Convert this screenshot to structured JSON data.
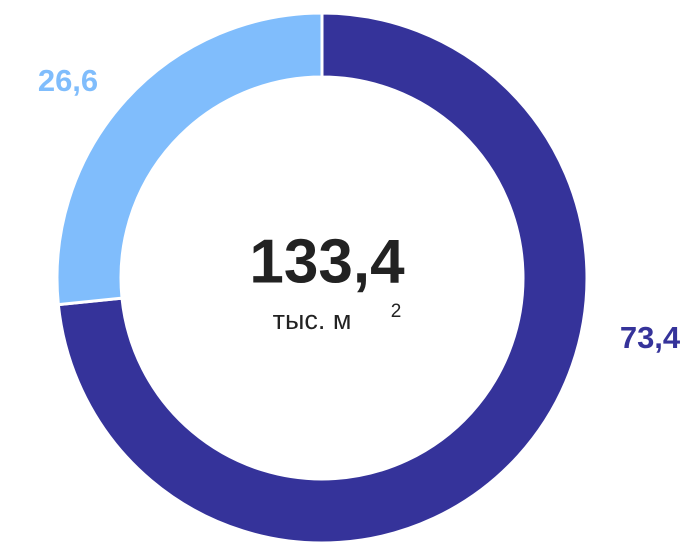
{
  "chart_data": {
    "type": "donut",
    "categories": [
      null,
      null
    ],
    "values": [
      73.4,
      26.6
    ],
    "value_labels": [
      "73,4",
      "26,6"
    ],
    "colors": [
      "#35339a",
      "#80bdfc"
    ],
    "center_text": "133,4",
    "center_unit": "тыс. м",
    "center_unit_sup": "2"
  }
}
